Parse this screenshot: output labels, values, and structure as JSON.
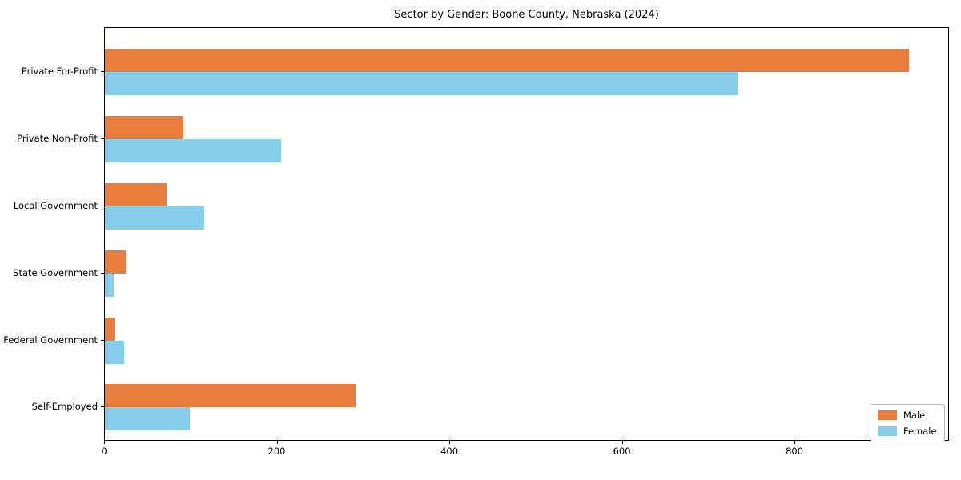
{
  "title": "Sector by Gender: Boone County, Nebraska (2024)",
  "chart_data": {
    "type": "bar",
    "orientation": "horizontal",
    "title": "Sector by Gender: Boone County, Nebraska (2024)",
    "categories": [
      "Private For-Profit",
      "Private Non-Profit",
      "Local Government",
      "State Government",
      "Federal Government",
      "Self-Employed"
    ],
    "series": [
      {
        "name": "Male",
        "color": "#e87d3e",
        "values": [
          932,
          91,
          71,
          24,
          11,
          290
        ]
      },
      {
        "name": "Female",
        "color": "#87ceeb",
        "values": [
          733,
          204,
          115,
          10,
          22,
          98
        ]
      }
    ],
    "xlabel": "",
    "ylabel": "",
    "xlim": [
      0,
      979
    ],
    "xticks": [
      0,
      200,
      400,
      600,
      800
    ],
    "grid": false,
    "legend_position": "lower right",
    "background_color": "#ffffff",
    "axis_color": "#000000"
  },
  "legend": {
    "male_label": "Male",
    "female_label": "Female"
  }
}
